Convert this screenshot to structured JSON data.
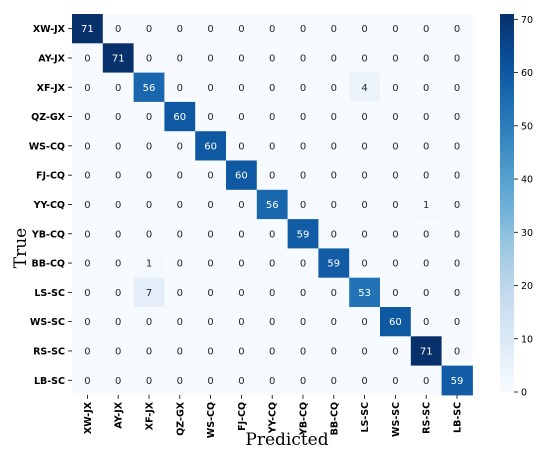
{
  "chart_data": {
    "type": "heatmap",
    "title": "",
    "xlabel": "Predicted",
    "ylabel": "True",
    "row_labels": [
      "XW-JX",
      "AY-JX",
      "XF-JX",
      "QZ-GX",
      "WS-CQ",
      "FJ-CQ",
      "YY-CQ",
      "YB-CQ",
      "BB-CQ",
      "LS-SC",
      "WS-SC",
      "RS-SC",
      "LB-SC"
    ],
    "col_labels": [
      "XW-JX",
      "AY-JX",
      "XF-JX",
      "QZ-GX",
      "WS-CQ",
      "FJ-CQ",
      "YY-CQ",
      "YB-CQ",
      "BB-CQ",
      "LS-SC",
      "WS-SC",
      "RS-SC",
      "LB-SC"
    ],
    "values": [
      [
        71,
        0,
        0,
        0,
        0,
        0,
        0,
        0,
        0,
        0,
        0,
        0,
        0
      ],
      [
        0,
        71,
        0,
        0,
        0,
        0,
        0,
        0,
        0,
        0,
        0,
        0,
        0
      ],
      [
        0,
        0,
        56,
        0,
        0,
        0,
        0,
        0,
        0,
        4,
        0,
        0,
        0
      ],
      [
        0,
        0,
        0,
        60,
        0,
        0,
        0,
        0,
        0,
        0,
        0,
        0,
        0
      ],
      [
        0,
        0,
        0,
        0,
        60,
        0,
        0,
        0,
        0,
        0,
        0,
        0,
        0
      ],
      [
        0,
        0,
        0,
        0,
        0,
        60,
        0,
        0,
        0,
        0,
        0,
        0,
        0
      ],
      [
        0,
        0,
        0,
        0,
        0,
        0,
        56,
        0,
        0,
        0,
        0,
        1,
        0
      ],
      [
        0,
        0,
        0,
        0,
        0,
        0,
        0,
        59,
        0,
        0,
        0,
        0,
        0
      ],
      [
        0,
        0,
        1,
        0,
        0,
        0,
        0,
        0,
        59,
        0,
        0,
        0,
        0
      ],
      [
        0,
        0,
        7,
        0,
        0,
        0,
        0,
        0,
        0,
        53,
        0,
        0,
        0
      ],
      [
        0,
        0,
        0,
        0,
        0,
        0,
        0,
        0,
        0,
        0,
        60,
        0,
        0
      ],
      [
        0,
        0,
        0,
        0,
        0,
        0,
        0,
        0,
        0,
        0,
        0,
        71,
        0
      ],
      [
        0,
        0,
        0,
        0,
        0,
        0,
        0,
        0,
        0,
        0,
        0,
        0,
        59
      ]
    ],
    "colorbar": {
      "range": [
        0,
        71
      ],
      "ticks": [
        0,
        10,
        20,
        30,
        40,
        50,
        60,
        70
      ],
      "colormap": "Blues",
      "low_color": "#f7fbff",
      "high_color": "#08306b"
    }
  }
}
